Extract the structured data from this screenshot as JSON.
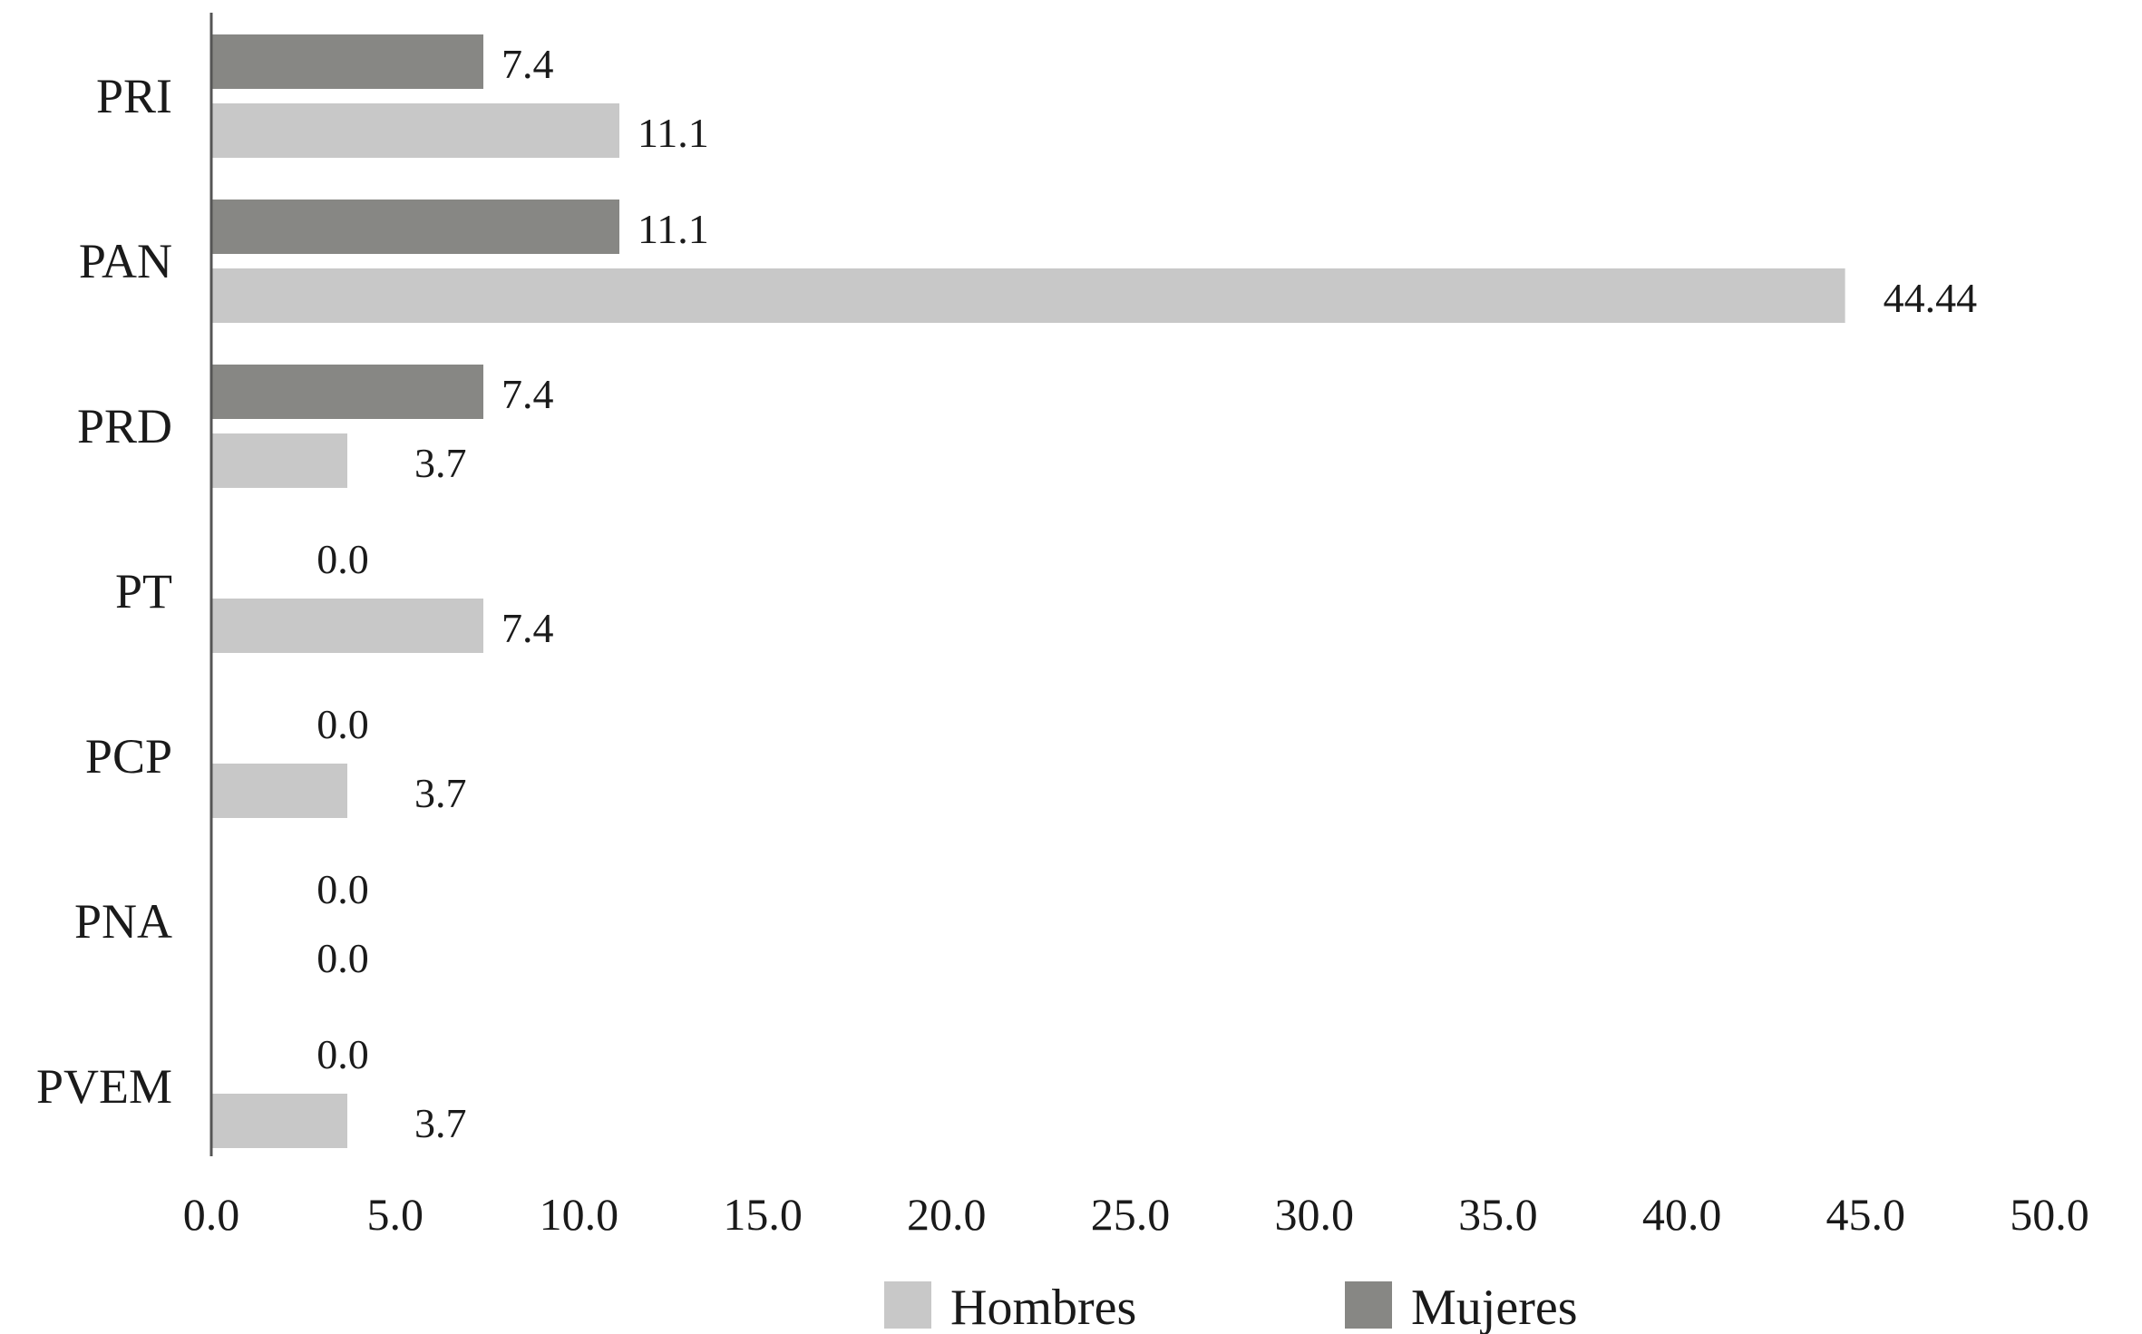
{
  "chart_data": {
    "type": "bar",
    "orientation": "horizontal",
    "categories": [
      "PRI",
      "PAN",
      "PRD",
      "PT",
      "PCP",
      "PNA",
      "PVEM"
    ],
    "series": [
      {
        "name": "Mujeres",
        "color": "#878784",
        "values": [
          7.4,
          11.1,
          7.4,
          0.0,
          0.0,
          0.0,
          0.0
        ],
        "labels": [
          "7.4",
          "11.1",
          "7.4",
          "0.0",
          "0.0",
          "0.0",
          "0.0"
        ]
      },
      {
        "name": "Hombres",
        "color": "#c8c8c8",
        "values": [
          11.1,
          44.44,
          3.7,
          7.4,
          3.7,
          0.0,
          3.7
        ],
        "labels": [
          "11.1",
          "44.44",
          "3.7",
          "7.4",
          "3.7",
          "0.0",
          "3.7"
        ]
      }
    ],
    "xlim": [
      0,
      50
    ],
    "xticks": [
      "0.0",
      "5.0",
      "10.0",
      "15.0",
      "20.0",
      "25.0",
      "30.0",
      "35.0",
      "40.0",
      "45.0",
      "50.0"
    ],
    "grid": false,
    "legend": {
      "position": "bottom",
      "items": [
        {
          "name": "Hombres",
          "color": "#c8c8c8"
        },
        {
          "name": "Mujeres",
          "color": "#878784"
        }
      ]
    }
  }
}
